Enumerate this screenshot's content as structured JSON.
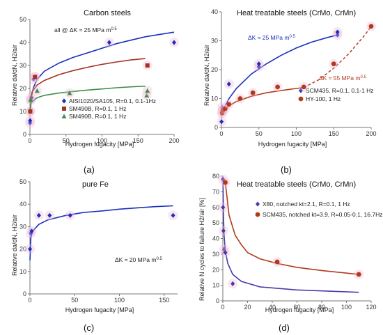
{
  "chart_data": [
    {
      "panel_label": "(a)",
      "type": "scatter",
      "title": "Carbon steels",
      "xlabel": "Hydrogen fugacity [MPa]",
      "ylabel": "Relative da/dN, H2/air",
      "xlim": [
        0,
        200
      ],
      "ylim": [
        0,
        50
      ],
      "xticks": [
        0,
        50,
        100,
        150,
        200
      ],
      "yticks": [
        0,
        10,
        20,
        30,
        40,
        50
      ],
      "annotations": [
        "all @ ΔK ≈ 25 MPa m^0.5"
      ],
      "legend_position": "bottom-center",
      "series": [
        {
          "name": "AISI1020/SA105, R=0.1, 0.1-1Hz",
          "color": "#1a2fbf",
          "marker": "diamond",
          "x": [
            0.1,
            0.3,
            0.5,
            1,
            2,
            5,
            7,
            110,
            200
          ],
          "y": [
            5,
            6,
            10,
            15,
            16,
            24,
            25,
            40,
            40
          ],
          "fit_x": [
            0,
            2,
            5,
            10,
            20,
            40,
            60,
            80,
            100,
            120,
            140,
            160,
            180,
            200
          ],
          "fit_y": [
            9,
            17,
            20.5,
            24,
            27.5,
            31,
            33.5,
            35.5,
            37.5,
            39.5,
            41,
            42.5,
            43.5,
            44.5
          ]
        },
        {
          "name": "SM490B, R=0.1, 1 Hz",
          "color": "#a3321f",
          "marker": "square",
          "x": [
            0.5,
            7,
            163
          ],
          "y": [
            10,
            25,
            30
          ],
          "fit_x": [
            0,
            3,
            10,
            20,
            40,
            60,
            80,
            100,
            120,
            140,
            160
          ],
          "fit_y": [
            9,
            18.5,
            21.5,
            23.5,
            26,
            27.8,
            29.2,
            30.5,
            31.5,
            32.4,
            33
          ]
        },
        {
          "name": "SM490B, R=0.1, 1 Hz",
          "color": "#3f8f4a",
          "marker": "triangle",
          "x": [
            1,
            10,
            55,
            162,
            163
          ],
          "y": [
            15,
            19,
            18,
            17,
            19
          ],
          "fit_x": [
            0,
            2,
            10,
            20,
            40,
            60,
            80,
            100,
            120,
            140,
            160
          ],
          "fit_y": [
            11,
            14,
            16,
            17,
            18,
            18.7,
            19.3,
            19.8,
            20.3,
            20.7,
            21
          ]
        }
      ]
    },
    {
      "panel_label": "(b)",
      "type": "scatter",
      "title": "Heat treatable steels (CrMo, CrMn)",
      "xlabel": "Hydrogen fugacity [MPa]",
      "ylabel": "Relative da/dN, H2/air",
      "xlim": [
        0,
        200
      ],
      "ylim": [
        0,
        40
      ],
      "xticks": [
        0,
        50,
        100,
        150,
        200
      ],
      "yticks": [
        0,
        10,
        20,
        30,
        40
      ],
      "annotations": [
        "ΔK ≈ 25 MPa m^0.5",
        "ΔK ≈ 55 MPa m^0.5"
      ],
      "legend_position": "bottom-right",
      "series": [
        {
          "name": "SCM435, R=0.1, 0.1-1 Hz",
          "color": "#1a2fbf",
          "marker": "diamond",
          "x": [
            0.1,
            0.5,
            1,
            2,
            10,
            50,
            50,
            155,
            155
          ],
          "y": [
            2,
            5,
            7,
            6,
            15,
            21,
            22,
            32,
            33
          ],
          "fit_x": [
            0,
            10,
            20,
            40,
            60,
            80,
            100,
            120,
            140,
            155
          ],
          "fit_y": [
            5,
            10,
            13.5,
            18.5,
            22,
            25,
            27.5,
            29.5,
            31,
            32
          ]
        },
        {
          "name": "HY-100, 1 Hz",
          "color": "#b23a1c",
          "marker": "circle",
          "x": [
            1,
            2,
            5,
            10,
            25,
            42,
            75,
            110,
            150,
            200
          ],
          "y": [
            5,
            6,
            6.5,
            8,
            10,
            12,
            14,
            14,
            22,
            35
          ],
          "fit_x": [
            0,
            10,
            20,
            40,
            60,
            80,
            100,
            110
          ],
          "fit_y": [
            4.5,
            7.5,
            9,
            10.8,
            12,
            12.8,
            13.5,
            13.8
          ],
          "fit2_x": [
            110,
            130,
            150,
            170,
            190,
            200
          ],
          "fit2_y": [
            13.8,
            16.5,
            20.5,
            25.5,
            31.5,
            35
          ]
        }
      ]
    },
    {
      "panel_label": "(c)",
      "type": "scatter",
      "title": "pure Fe",
      "xlabel": "Hydrogen fugacity [MPa]",
      "ylabel": "Relative da/dN, H2/air",
      "xlim": [
        0,
        165
      ],
      "ylim": [
        0,
        50
      ],
      "xticks": [
        0,
        50,
        100,
        150
      ],
      "yticks": [
        0,
        10,
        20,
        30,
        40,
        50
      ],
      "annotations": [
        "ΔK ≈ 20 MPa m^0.5"
      ],
      "series": [
        {
          "name": "",
          "color": "#1a2fbf",
          "marker": "diamond",
          "x": [
            0.1,
            1,
            2,
            10,
            22,
            45,
            160
          ],
          "y": [
            20,
            27,
            28,
            35,
            35,
            35,
            35
          ],
          "fit_x": [
            0,
            1,
            3,
            10,
            20,
            40,
            60,
            80,
            100,
            120,
            140,
            160
          ],
          "fit_y": [
            15,
            25,
            28,
            31,
            33,
            35,
            36.3,
            37,
            37.8,
            38.4,
            38.9,
            39.3
          ]
        }
      ]
    },
    {
      "panel_label": "(d)",
      "type": "scatter",
      "title": "Heat treatable steels (CrMo, CrMn)",
      "xlabel": "Hydrogen fugacity [MPa]",
      "ylabel": "Relative N cycles to failure H2/air [%]",
      "xlim": [
        0,
        120
      ],
      "ylim": [
        0,
        80
      ],
      "xticks": [
        0,
        20,
        40,
        60,
        80,
        100,
        120
      ],
      "yticks": [
        0,
        10,
        20,
        30,
        40,
        50,
        60,
        70,
        80
      ],
      "legend_position": "top-right",
      "series": [
        {
          "name": "X80, notched kt=2.1, R=0.1, 1 Hz",
          "color": "#4a3aa8",
          "marker": "diamond",
          "x": [
            0.1,
            0.2,
            0.5,
            1,
            2,
            8
          ],
          "y": [
            78,
            60,
            45,
            33,
            31,
            11
          ],
          "fit_x": [
            0.1,
            0.5,
            1,
            2,
            4,
            8,
            15,
            30,
            60,
            110
          ],
          "fit_y": [
            78,
            55,
            42,
            32,
            24,
            17,
            12.5,
            9,
            7,
            5.5
          ]
        },
        {
          "name": "SCM435, notched kt=3.9, R=0.05-0.1, 16.7Hz",
          "color": "#b23a1c",
          "marker": "circle",
          "x": [
            2,
            44,
            110
          ],
          "y": [
            76,
            25,
            17
          ],
          "fit_x": [
            2,
            5,
            10,
            15,
            20,
            30,
            44,
            60,
            80,
            110
          ],
          "fit_y": [
            76,
            55,
            42,
            36,
            31,
            27,
            24,
            21.5,
            19.5,
            17
          ]
        }
      ]
    }
  ],
  "panel_labels": [
    "(a)",
    "(b)",
    "(c)",
    "(d)"
  ],
  "legend_a": [
    "AISI1020/SA105, R=0.1, 0.1-1Hz",
    "SM490B, R=0.1, 1 Hz",
    "SM490B, R=0.1, 1 Hz"
  ],
  "legend_b": [
    "SCM435, R=0.1, 0.1-1 Hz",
    "HY-100, 1 Hz"
  ],
  "legend_d": [
    "X80, notched kt=2.1, R=0.1, 1 Hz",
    "SCM435, notched kt=3.9, R=0.05-0.1, 16.7Hz"
  ],
  "notes": {
    "a": "all @ ΔK ≈ 25 MPa m",
    "b1": "ΔK ≈ 25 MPa m",
    "b2": "ΔK ≈ 55 MPa m",
    "c": "ΔK ≈ 20 MPa m",
    "exp": "0.5"
  }
}
